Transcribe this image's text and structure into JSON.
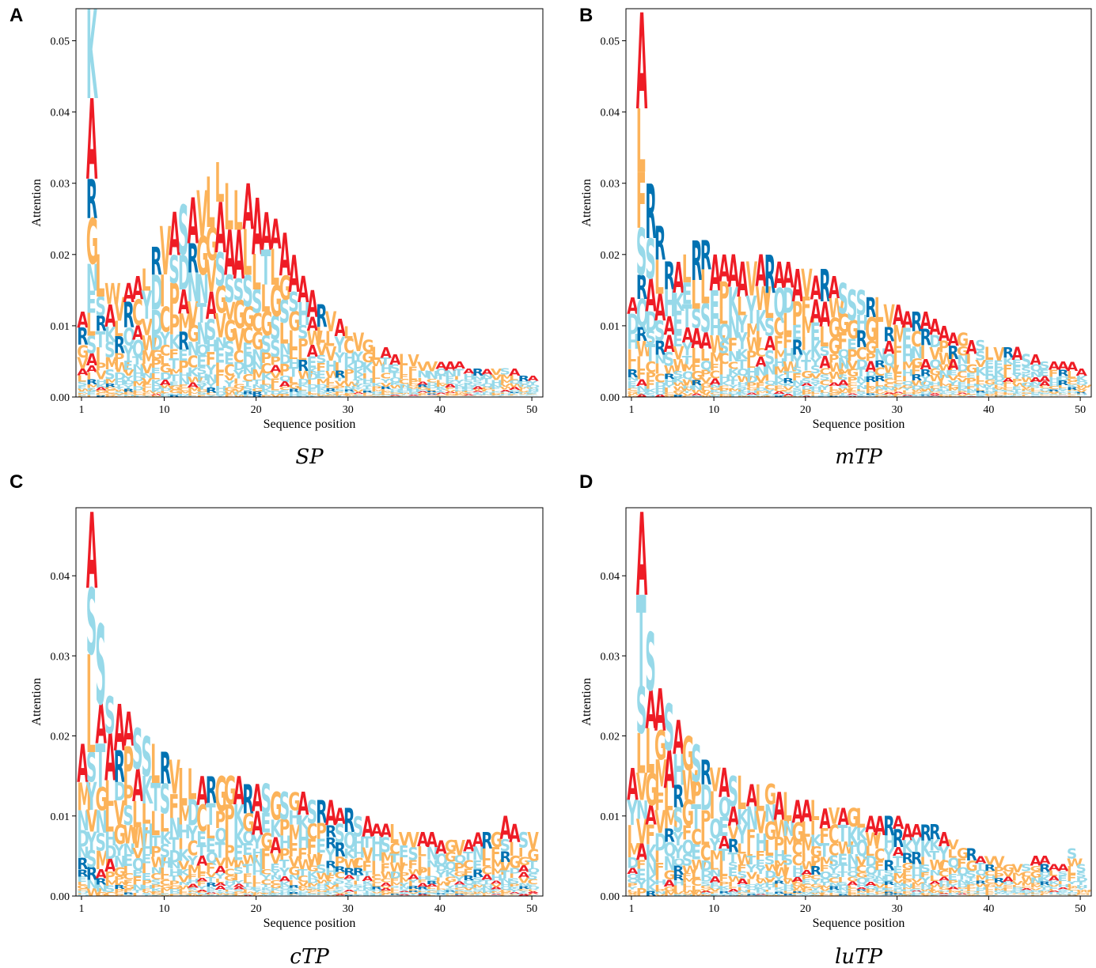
{
  "figure": {
    "colors": {
      "A": "#ee1c25",
      "R": "#0072b2",
      "hydrophobic": "#fcb35a",
      "polar": "#97d9e9",
      "axis": "#000000"
    }
  },
  "chart_data": [
    {
      "id": "SP",
      "type": "sequence-logo",
      "panel_label": "A",
      "caption": "SP",
      "xlabel": "Sequence position",
      "ylabel": "Attention",
      "xlim": [
        0.4,
        51.2
      ],
      "ylim": [
        0,
        0.0545
      ],
      "xticks": [
        1,
        10,
        20,
        30,
        40,
        50
      ],
      "yticks": [
        0.0,
        0.01,
        0.02,
        0.03,
        0.04,
        0.05
      ],
      "ytick_labels": [
        "0.00",
        "0.01",
        "0.02",
        "0.03",
        "0.04",
        "0.05"
      ],
      "positions": [
        1,
        2,
        3,
        4,
        5,
        6,
        7,
        8,
        9,
        10,
        11,
        12,
        13,
        14,
        15,
        16,
        17,
        18,
        19,
        20,
        21,
        22,
        23,
        24,
        25,
        26,
        27,
        28,
        29,
        30,
        31,
        32,
        33,
        34,
        35,
        36,
        37,
        38,
        39,
        40,
        41,
        42,
        43,
        44,
        45,
        46,
        47,
        48,
        49,
        50
      ],
      "totals": [
        0.012,
        0.055,
        0.02,
        0.016,
        0.014,
        0.016,
        0.017,
        0.018,
        0.021,
        0.024,
        0.026,
        0.027,
        0.028,
        0.029,
        0.031,
        0.033,
        0.03,
        0.029,
        0.03,
        0.028,
        0.026,
        0.025,
        0.023,
        0.02,
        0.017,
        0.015,
        0.013,
        0.012,
        0.011,
        0.01,
        0.009,
        0.008,
        0.007,
        0.007,
        0.006,
        0.006,
        0.006,
        0.005,
        0.005,
        0.005,
        0.005,
        0.005,
        0.004,
        0.004,
        0.004,
        0.004,
        0.004,
        0.004,
        0.003,
        0.003
      ],
      "top_letters": [
        {
          "pos": 2,
          "letters": [
            "K",
            "A",
            "R",
            "G",
            "N",
            "E",
            "L",
            "S"
          ]
        },
        {
          "pos": 3,
          "letters": [
            "L",
            "S",
            "R",
            "T",
            "I"
          ]
        },
        {
          "pos": 4,
          "letters": [
            "W",
            "A",
            "K",
            "S"
          ]
        },
        {
          "pos": 15,
          "letters": [
            "L",
            "G",
            "V",
            "A",
            "S"
          ]
        },
        {
          "pos": 16,
          "letters": [
            "L",
            "A",
            "S",
            "G",
            "V"
          ]
        },
        {
          "pos": 17,
          "letters": [
            "L",
            "A",
            "S",
            "V",
            "G"
          ]
        },
        {
          "pos": 18,
          "letters": [
            "L",
            "A",
            "S",
            "G",
            "V"
          ]
        },
        {
          "pos": 19,
          "letters": [
            "A",
            "L",
            "S",
            "G",
            "C"
          ]
        },
        {
          "pos": 20,
          "letters": [
            "A",
            "L",
            "S",
            "C",
            "G"
          ]
        },
        {
          "pos": 21,
          "letters": [
            "A",
            "T",
            "L",
            "G",
            "S"
          ]
        },
        {
          "pos": 22,
          "letters": [
            "A",
            "L",
            "G",
            "S"
          ]
        },
        {
          "pos": 23,
          "letters": [
            "A",
            "G",
            "S",
            "L"
          ]
        },
        {
          "pos": 24,
          "letters": [
            "A",
            "S",
            "G",
            "L"
          ]
        }
      ]
    },
    {
      "id": "mTP",
      "type": "sequence-logo",
      "panel_label": "B",
      "caption": "mTP",
      "xlabel": "Sequence position",
      "ylabel": "Attention",
      "xlim": [
        0.4,
        51.2
      ],
      "ylim": [
        0,
        0.0545
      ],
      "xticks": [
        1,
        10,
        20,
        30,
        40,
        50
      ],
      "yticks": [
        0.0,
        0.01,
        0.02,
        0.03,
        0.04,
        0.05
      ],
      "ytick_labels": [
        "0.00",
        "0.01",
        "0.02",
        "0.03",
        "0.04",
        "0.05"
      ],
      "positions": [
        1,
        2,
        3,
        4,
        5,
        6,
        7,
        8,
        9,
        10,
        11,
        12,
        13,
        14,
        15,
        16,
        17,
        18,
        19,
        20,
        21,
        22,
        23,
        24,
        25,
        26,
        27,
        28,
        29,
        30,
        31,
        32,
        33,
        34,
        35,
        36,
        37,
        38,
        39,
        40,
        41,
        42,
        43,
        44,
        45,
        46,
        47,
        48,
        49,
        50
      ],
      "totals": [
        0.014,
        0.054,
        0.03,
        0.024,
        0.019,
        0.019,
        0.02,
        0.022,
        0.022,
        0.02,
        0.02,
        0.02,
        0.019,
        0.019,
        0.02,
        0.02,
        0.019,
        0.019,
        0.018,
        0.018,
        0.017,
        0.018,
        0.017,
        0.016,
        0.015,
        0.015,
        0.014,
        0.014,
        0.013,
        0.013,
        0.012,
        0.012,
        0.012,
        0.011,
        0.01,
        0.009,
        0.009,
        0.008,
        0.008,
        0.007,
        0.007,
        0.007,
        0.007,
        0.006,
        0.006,
        0.005,
        0.005,
        0.005,
        0.005,
        0.004
      ],
      "top_letters": [
        {
          "pos": 2,
          "letters": [
            "A",
            "L",
            "F",
            "S",
            "R",
            "Q"
          ]
        },
        {
          "pos": 3,
          "letters": [
            "R",
            "S",
            "A"
          ]
        },
        {
          "pos": 4,
          "letters": [
            "R",
            "L",
            "A",
            "S"
          ]
        },
        {
          "pos": 8,
          "letters": [
            "R",
            "L",
            "S",
            "A"
          ]
        },
        {
          "pos": 9,
          "letters": [
            "R",
            "L",
            "S",
            "A"
          ]
        },
        {
          "pos": 16,
          "letters": [
            "R",
            "L",
            "S",
            "A"
          ]
        },
        {
          "pos": 22,
          "letters": [
            "R",
            "A",
            "L",
            "S"
          ]
        }
      ]
    },
    {
      "id": "cTP",
      "type": "sequence-logo",
      "panel_label": "C",
      "caption": "cTP",
      "xlabel": "Sequence position",
      "ylabel": "Attention",
      "xlim": [
        0.4,
        51.2
      ],
      "ylim": [
        0,
        0.0485
      ],
      "xticks": [
        1,
        10,
        20,
        30,
        40,
        50
      ],
      "yticks": [
        0.0,
        0.01,
        0.02,
        0.03,
        0.04
      ],
      "ytick_labels": [
        "0.00",
        "0.01",
        "0.02",
        "0.03",
        "0.04"
      ],
      "positions": [
        1,
        2,
        3,
        4,
        5,
        6,
        7,
        8,
        9,
        10,
        11,
        12,
        13,
        14,
        15,
        16,
        17,
        18,
        19,
        20,
        21,
        22,
        23,
        24,
        25,
        26,
        27,
        28,
        29,
        30,
        31,
        32,
        33,
        34,
        35,
        36,
        37,
        38,
        39,
        40,
        41,
        42,
        43,
        44,
        45,
        46,
        47,
        48,
        49,
        50
      ],
      "totals": [
        0.019,
        0.048,
        0.034,
        0.025,
        0.024,
        0.023,
        0.021,
        0.02,
        0.019,
        0.018,
        0.017,
        0.016,
        0.016,
        0.015,
        0.015,
        0.015,
        0.015,
        0.015,
        0.014,
        0.014,
        0.014,
        0.013,
        0.013,
        0.013,
        0.013,
        0.012,
        0.012,
        0.012,
        0.011,
        0.011,
        0.01,
        0.01,
        0.009,
        0.009,
        0.009,
        0.008,
        0.008,
        0.008,
        0.008,
        0.007,
        0.007,
        0.007,
        0.007,
        0.008,
        0.008,
        0.008,
        0.01,
        0.009,
        0.008,
        0.008
      ],
      "top_letters": [
        {
          "pos": 2,
          "letters": [
            "A",
            "S",
            "I",
            "L"
          ]
        },
        {
          "pos": 3,
          "letters": [
            "S",
            "A",
            "T"
          ]
        },
        {
          "pos": 4,
          "letters": [
            "S",
            "A",
            "L"
          ]
        },
        {
          "pos": 7,
          "letters": [
            "S",
            "A",
            "L"
          ]
        },
        {
          "pos": 47,
          "letters": [
            "A",
            "S",
            "R"
          ]
        }
      ]
    },
    {
      "id": "luTP",
      "type": "sequence-logo",
      "panel_label": "D",
      "caption": "luTP",
      "xlabel": "Sequence position",
      "ylabel": "Attention",
      "xlim": [
        0.4,
        51.2
      ],
      "ylim": [
        0,
        0.0485
      ],
      "xticks": [
        1,
        10,
        20,
        30,
        40,
        50
      ],
      "yticks": [
        0.0,
        0.01,
        0.02,
        0.03,
        0.04
      ],
      "ytick_labels": [
        "0.00",
        "0.01",
        "0.02",
        "0.03",
        "0.04"
      ],
      "positions": [
        1,
        2,
        3,
        4,
        5,
        6,
        7,
        8,
        9,
        10,
        11,
        12,
        13,
        14,
        15,
        16,
        17,
        18,
        19,
        20,
        21,
        22,
        23,
        24,
        25,
        26,
        27,
        28,
        29,
        30,
        31,
        32,
        33,
        34,
        35,
        36,
        37,
        38,
        39,
        40,
        41,
        42,
        43,
        44,
        45,
        46,
        47,
        48,
        49,
        50
      ],
      "totals": [
        0.016,
        0.048,
        0.033,
        0.026,
        0.024,
        0.022,
        0.02,
        0.019,
        0.017,
        0.016,
        0.016,
        0.015,
        0.015,
        0.014,
        0.014,
        0.014,
        0.013,
        0.013,
        0.012,
        0.012,
        0.012,
        0.011,
        0.011,
        0.011,
        0.011,
        0.011,
        0.01,
        0.01,
        0.01,
        0.01,
        0.009,
        0.009,
        0.009,
        0.009,
        0.008,
        0.007,
        0.006,
        0.006,
        0.005,
        0.005,
        0.005,
        0.004,
        0.004,
        0.004,
        0.005,
        0.005,
        0.004,
        0.004,
        0.006,
        0.004
      ],
      "top_letters": [
        {
          "pos": 2,
          "letters": [
            "A",
            "T",
            "S",
            "L"
          ]
        },
        {
          "pos": 3,
          "letters": [
            "S",
            "A",
            "L"
          ]
        },
        {
          "pos": 5,
          "letters": [
            "S",
            "A",
            "L"
          ]
        },
        {
          "pos": 8,
          "letters": [
            "S",
            "P",
            "T"
          ]
        }
      ]
    }
  ]
}
